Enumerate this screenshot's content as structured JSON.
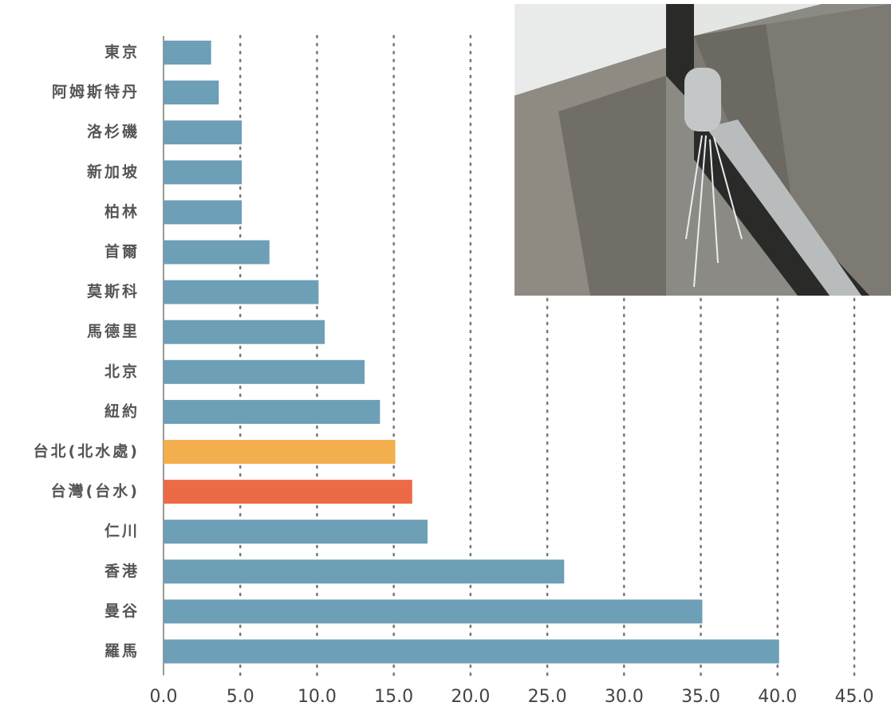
{
  "chart_data": {
    "type": "hbar",
    "categories": [
      "東京",
      "阿姆斯特丹",
      "洛杉磯",
      "新加坡",
      "柏林",
      "首爾",
      "莫斯科",
      "馬德里",
      "北京",
      "紐約",
      "台北(北水處)",
      "台灣(台水)",
      "仁川",
      "香港",
      "曼谷",
      "羅馬"
    ],
    "values": [
      3.1,
      3.6,
      5.1,
      5.1,
      5.1,
      6.9,
      10.1,
      10.5,
      13.1,
      14.1,
      15.1,
      16.2,
      17.2,
      26.1,
      35.1,
      40.1
    ],
    "colors": [
      "#6d9fb6",
      "#6d9fb6",
      "#6d9fb6",
      "#6d9fb6",
      "#6d9fb6",
      "#6d9fb6",
      "#6d9fb6",
      "#6d9fb6",
      "#6d9fb6",
      "#6d9fb6",
      "#f3af4e",
      "#ec6b46",
      "#6d9fb6",
      "#6d9fb6",
      "#6d9fb6",
      "#6d9fb6"
    ],
    "xlim": [
      0,
      45
    ],
    "xticks": [
      {
        "value": 0,
        "label": "0.0"
      },
      {
        "value": 5,
        "label": "5.0"
      },
      {
        "value": 10,
        "label": "10.0"
      },
      {
        "value": 15,
        "label": "15.0"
      },
      {
        "value": 20,
        "label": "20.0"
      },
      {
        "value": 25,
        "label": "25.0"
      },
      {
        "value": 30,
        "label": "30.0"
      },
      {
        "value": 35,
        "label": "35.0"
      },
      {
        "value": 40,
        "label": "40.0"
      },
      {
        "value": 45,
        "label": "45.0"
      }
    ],
    "grid": true
  }
}
